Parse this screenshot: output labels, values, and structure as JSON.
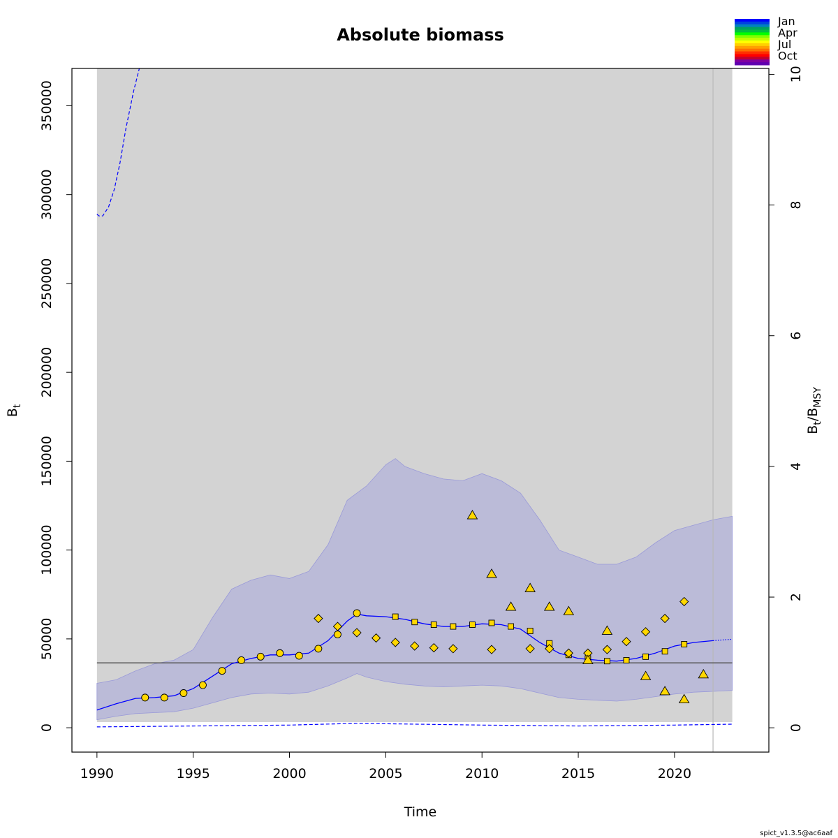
{
  "title": "Absolute biomass",
  "stamp": "spict_v1.3.5@ac6aaf",
  "axes": {
    "x_label": "Time",
    "y_left_label_main": "B",
    "y_left_label_sub": "t",
    "y_right_label": {
      "b": "B",
      "t": "t",
      "slash": "/",
      "b2": "B",
      "msy": "MSY"
    }
  },
  "legend": {
    "labels": [
      "Jan",
      "Apr",
      "Jul",
      "Oct"
    ],
    "colors": [
      "#0000FF",
      "#0040E0",
      "#0080C0",
      "#00A060",
      "#00C040",
      "#00FF00",
      "#80FF00",
      "#C0FF00",
      "#FFFF00",
      "#FFD000",
      "#FFA000",
      "#FF7000",
      "#FF3000",
      "#FF0000",
      "#C00030",
      "#8000A0",
      "#6000B0"
    ]
  },
  "colors": {
    "panel_bg": "#D3D3D3",
    "ci_band": "#BBBBD8",
    "ci_edge": "#9A9AD8",
    "line": "#0000FF",
    "bmsy_line": "#555555",
    "marker_fill": "#FFD700"
  },
  "chart_data": {
    "type": "line",
    "title": "Absolute biomass",
    "xlabel": "Time",
    "ylabel": "Bt",
    "y2label": "Bt/BMSY",
    "xlim": [
      1988.7,
      2024.9
    ],
    "ylim": [
      -13700,
      371000
    ],
    "y2lim": [
      -0.372,
      10.09
    ],
    "x_ticks": [
      1990,
      1995,
      2000,
      2005,
      2010,
      2015,
      2020
    ],
    "y_ticks": [
      0,
      50000,
      100000,
      150000,
      200000,
      250000,
      300000,
      350000
    ],
    "y2_ticks": [
      0,
      2,
      4,
      6,
      8,
      10
    ],
    "panel_x_range": [
      1990,
      2023
    ],
    "forecast_start": 2022,
    "bmsy": 36500,
    "bmsy_band": [
      3200,
      371000
    ],
    "biomass_estimate": {
      "x": [
        1990,
        1991,
        1992,
        1993,
        1994,
        1995,
        1996,
        1997,
        1998,
        1999,
        2000,
        2001,
        2002,
        2003,
        2003.5,
        2004,
        2005,
        2006,
        2007,
        2008,
        2009,
        2010,
        2011,
        2012,
        2013,
        2014,
        2015,
        2016,
        2017,
        2018,
        2019,
        2020,
        2021,
        2022
      ],
      "y": [
        10000,
        13500,
        16500,
        17000,
        18000,
        22000,
        29000,
        36000,
        39000,
        41000,
        41000,
        42000,
        49000,
        60000,
        64000,
        63000,
        62500,
        61000,
        58500,
        57000,
        57000,
        58500,
        58000,
        55500,
        48000,
        42000,
        39000,
        38000,
        37500,
        39000,
        42000,
        46000,
        48000,
        49000
      ]
    },
    "biomass_forecast": {
      "x": [
        2022,
        2023
      ],
      "y": [
        49000,
        49800
      ]
    },
    "ci_upper": {
      "x": [
        1990,
        1991,
        1992,
        1993,
        1994,
        1995,
        1996,
        1997,
        1998,
        1999,
        2000,
        2001,
        2002,
        2003,
        2004,
        2005,
        2005.5,
        2006,
        2007,
        2008,
        2009,
        2010,
        2011,
        2012,
        2013,
        2014,
        2015,
        2016,
        2017,
        2018,
        2019,
        2020,
        2021,
        2022,
        2023
      ],
      "y": [
        25000,
        27000,
        32000,
        36000,
        38000,
        44000,
        62000,
        78000,
        83000,
        86000,
        84000,
        88000,
        103000,
        128000,
        136000,
        148000,
        151500,
        147000,
        143000,
        140000,
        139000,
        143000,
        139000,
        132000,
        117000,
        100000,
        96000,
        92000,
        92000,
        96000,
        104000,
        111000,
        114000,
        117000,
        119000
      ]
    },
    "ci_lower": {
      "x": [
        1990,
        1991,
        1992,
        1993,
        1994,
        1995,
        1996,
        1997,
        1998,
        1999,
        2000,
        2001,
        2002,
        2003,
        2003.5,
        2004,
        2005,
        2006,
        2007,
        2008,
        2009,
        2010,
        2011,
        2012,
        2013,
        2014,
        2015,
        2016,
        2017,
        2018,
        2019,
        2020,
        2021,
        2022,
        2023
      ],
      "y": [
        4500,
        6500,
        8000,
        8500,
        9000,
        11000,
        14000,
        17000,
        19000,
        19500,
        19000,
        20000,
        23500,
        28000,
        30500,
        28500,
        26000,
        24500,
        23500,
        23000,
        23500,
        24000,
        23500,
        22000,
        19500,
        17000,
        16000,
        15500,
        15000,
        16000,
        17500,
        19000,
        20000,
        20500,
        21000
      ]
    },
    "upper_dashed": {
      "x": [
        1990,
        1990.1,
        1990.3,
        1990.6,
        1990.9,
        1991.2,
        1991.5,
        1991.9,
        1992.2
      ],
      "y": [
        289000,
        288000,
        288000,
        293000,
        303000,
        318000,
        337000,
        358000,
        371000
      ]
    },
    "lower_dashed": {
      "x": [
        1990,
        1995,
        2000,
        2003.5,
        2010,
        2015,
        2020,
        2023
      ],
      "y": [
        500,
        1000,
        1500,
        2500,
        1500,
        1000,
        1500,
        2000
      ]
    },
    "series": [
      {
        "marker": "circle",
        "x": [
          1992.5,
          1993.5,
          1994.5,
          1995.5,
          1996.5,
          1997.5,
          1998.5,
          1999.5,
          2000.5,
          2001.5,
          2002.5,
          2003.5
        ],
        "y": [
          17000,
          17000,
          19500,
          24000,
          32000,
          38000,
          40000,
          42000,
          40500,
          44500,
          52500,
          64500
        ]
      },
      {
        "marker": "square",
        "x": [
          2005.5,
          2006.5,
          2007.5,
          2008.5,
          2009.5,
          2010.5,
          2011.5,
          2012.5,
          2013.5,
          2014.5,
          2015.5,
          2016.5,
          2017.5,
          2018.5,
          2019.5,
          2020.5
        ],
        "y": [
          62500,
          59500,
          58000,
          57000,
          58000,
          59000,
          57000,
          54500,
          47500,
          41000,
          39000,
          37500,
          38000,
          40000,
          43000,
          47000
        ]
      },
      {
        "marker": "diamond",
        "x": [
          2001.5,
          2002.5,
          2003.5,
          2004.5,
          2005.5,
          2006.5,
          2007.5,
          2008.5,
          2010.5,
          2012.5,
          2013.5,
          2014.5,
          2015.5,
          2016.5,
          2017.5,
          2018.5,
          2019.5,
          2020.5
        ],
        "y": [
          61500,
          57000,
          53500,
          50500,
          48000,
          46000,
          45000,
          44500,
          44000,
          44500,
          44500,
          42000,
          42000,
          44000,
          48500,
          54000,
          61500,
          71000
        ]
      },
      {
        "marker": "triangle",
        "x": [
          2009.5,
          2010.5,
          2011.5,
          2012.5,
          2013.5,
          2014.5,
          2015.5,
          2016.5,
          2018.5,
          2019.5,
          2020.5,
          2021.5
        ],
        "y": [
          119500,
          86500,
          68000,
          78500,
          68000,
          65500,
          38000,
          54500,
          29000,
          20500,
          16000,
          30000
        ]
      }
    ]
  }
}
